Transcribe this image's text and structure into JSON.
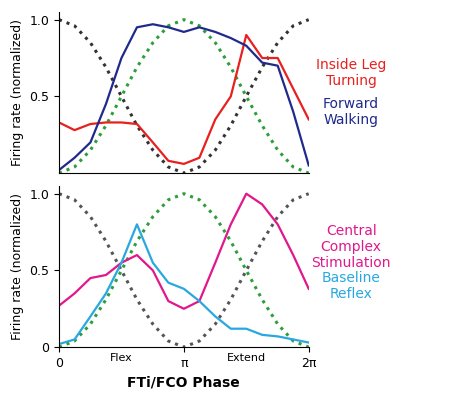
{
  "chart_data": [
    {
      "type": "line",
      "ylabel": "Firing rate (normalized)",
      "xlim": [
        0,
        6.28
      ],
      "ylim": [
        0,
        1.05
      ],
      "yticks": [
        0.5,
        1.0
      ],
      "tick_labels": "y",
      "grid": false,
      "x": [
        0,
        0.39,
        0.79,
        1.18,
        1.57,
        1.96,
        2.36,
        2.75,
        3.14,
        3.53,
        3.93,
        4.32,
        4.71,
        5.11,
        5.5,
        5.89,
        6.28
      ],
      "series": [
        {
          "color": "#333333",
          "line_style": "dotted",
          "values": [
            1.0,
            0.96,
            0.85,
            0.69,
            0.5,
            0.31,
            0.15,
            0.04,
            0.0,
            0.04,
            0.15,
            0.31,
            0.5,
            0.69,
            0.85,
            0.96,
            1.0
          ]
        },
        {
          "color": "#2e9e3a",
          "line_style": "dotted",
          "values": [
            0.0,
            0.04,
            0.15,
            0.31,
            0.5,
            0.69,
            0.85,
            0.96,
            1.0,
            0.96,
            0.85,
            0.69,
            0.5,
            0.31,
            0.15,
            0.04,
            0.0
          ]
        },
        {
          "name": "Inside Leg Turning",
          "color": "#e8201f",
          "line_style": "solid",
          "values": [
            0.33,
            0.28,
            0.32,
            0.33,
            0.33,
            0.32,
            0.2,
            0.08,
            0.06,
            0.1,
            0.35,
            0.5,
            0.9,
            0.75,
            0.75,
            0.55,
            0.35
          ]
        },
        {
          "name": "Forward Walking",
          "color": "#1f2a8c",
          "line_style": "solid",
          "values": [
            0.02,
            0.1,
            0.2,
            0.45,
            0.75,
            0.95,
            0.97,
            0.95,
            0.92,
            0.95,
            0.92,
            0.88,
            0.83,
            0.72,
            0.7,
            0.4,
            0.05
          ]
        }
      ]
    },
    {
      "type": "line",
      "ylabel": "Firing rate (normalized)",
      "xlabel": "FTi/FCO Phase",
      "xlim": [
        0,
        6.28
      ],
      "ylim": [
        0,
        1.05
      ],
      "xticks": [
        0,
        {
          "value": 3.14,
          "label": "π"
        },
        {
          "value": 6.28,
          "label": "2π"
        }
      ],
      "yticks": [
        0,
        0.5,
        1.0
      ],
      "grid": false,
      "annotations": [
        {
          "text": "Flex",
          "x": 1.57
        },
        {
          "text": "Extend",
          "x": 4.71
        }
      ],
      "x": [
        0,
        0.39,
        0.79,
        1.18,
        1.57,
        1.96,
        2.36,
        2.75,
        3.14,
        3.53,
        3.93,
        4.32,
        4.71,
        5.11,
        5.5,
        5.89,
        6.28
      ],
      "series": [
        {
          "color": "#555555",
          "line_style": "dotted",
          "values": [
            1.0,
            0.96,
            0.85,
            0.69,
            0.5,
            0.31,
            0.15,
            0.04,
            0.0,
            0.04,
            0.15,
            0.31,
            0.5,
            0.69,
            0.85,
            0.96,
            1.0
          ]
        },
        {
          "color": "#2e9e3a",
          "line_style": "dotted",
          "values": [
            0.0,
            0.04,
            0.15,
            0.31,
            0.5,
            0.69,
            0.85,
            0.96,
            1.0,
            0.96,
            0.85,
            0.69,
            0.5,
            0.31,
            0.15,
            0.04,
            0.0
          ]
        },
        {
          "name": "Central Complex Stimulation",
          "color": "#e0188c",
          "line_style": "solid",
          "values": [
            0.27,
            0.35,
            0.45,
            0.47,
            0.55,
            0.6,
            0.5,
            0.3,
            0.25,
            0.3,
            0.55,
            0.8,
            1.0,
            0.93,
            0.8,
            0.6,
            0.38
          ]
        },
        {
          "name": "Baseline Reflex",
          "color": "#29a8e0",
          "line_style": "solid",
          "values": [
            0.02,
            0.05,
            0.2,
            0.35,
            0.55,
            0.8,
            0.55,
            0.42,
            0.38,
            0.3,
            0.2,
            0.12,
            0.12,
            0.08,
            0.07,
            0.05,
            0.03
          ]
        }
      ]
    }
  ]
}
